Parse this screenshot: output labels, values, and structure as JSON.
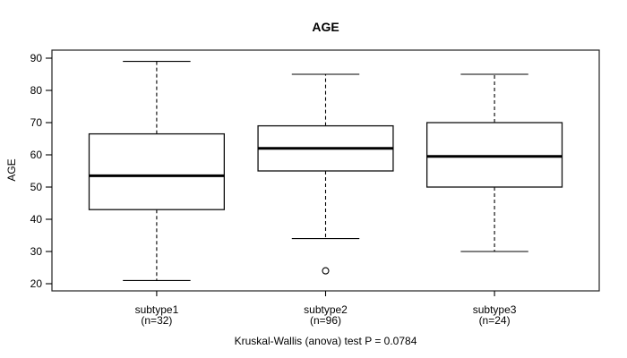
{
  "title": "AGE",
  "chart_data": {
    "type": "boxplot",
    "title": "AGE",
    "xlabel": "",
    "ylabel": "AGE",
    "y_ticks": [
      20,
      30,
      40,
      50,
      60,
      70,
      80,
      90
    ],
    "ylim": [
      18,
      92.5
    ],
    "grid": false,
    "legend": "none",
    "annotation": "Kruskal-Wallis (anova) test P = 0.0784",
    "groups": [
      {
        "label": "subtype1",
        "n_label": "(n=32)",
        "n": 32,
        "whisker_low": 21,
        "q1": 43,
        "median": 53.5,
        "q3": 66.5,
        "whisker_high": 89,
        "outliers": []
      },
      {
        "label": "subtype2",
        "n_label": "(n=96)",
        "n": 96,
        "whisker_low": 34,
        "q1": 55,
        "median": 62,
        "q3": 69,
        "whisker_high": 85,
        "outliers": [
          24
        ]
      },
      {
        "label": "subtype3",
        "n_label": "(n=24)",
        "n": 24,
        "whisker_low": 30,
        "q1": 50,
        "median": 59.5,
        "q3": 70,
        "whisker_high": 85,
        "outliers": []
      }
    ],
    "colors": {
      "line": "#000000",
      "median": "#000000",
      "box_fill": "#ffffff",
      "background": "#ffffff"
    }
  }
}
